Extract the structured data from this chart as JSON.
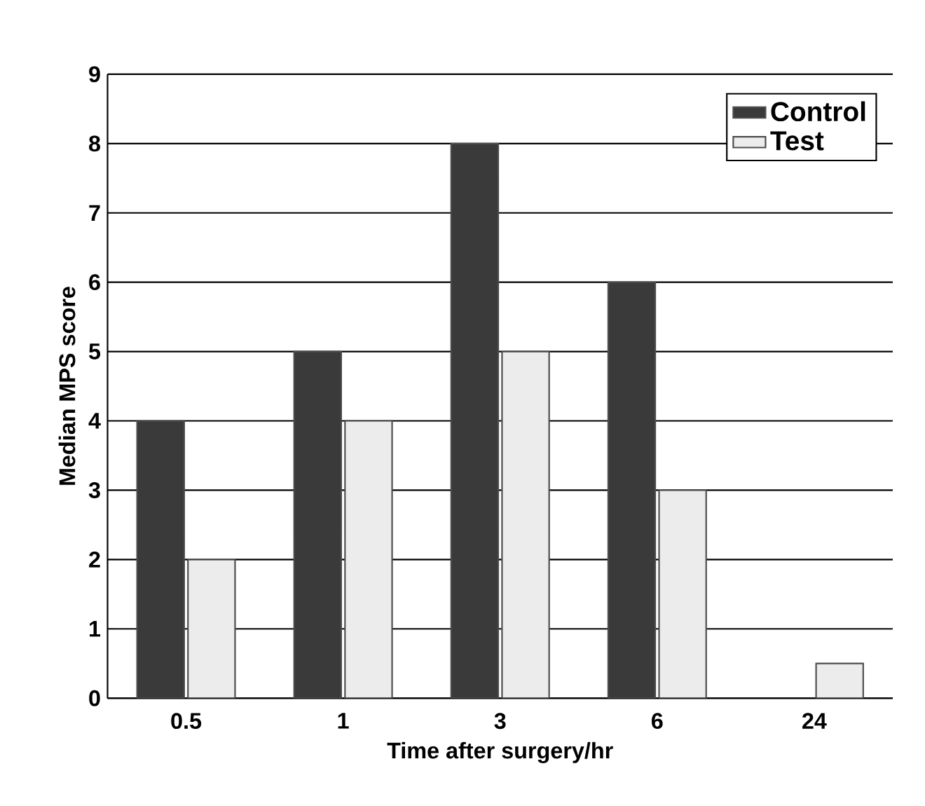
{
  "chart_data": {
    "type": "bar",
    "xlabel": "Time after surgery/hr",
    "ylabel": "Median MPS score",
    "categories": [
      "0.5",
      "1",
      "3",
      "6",
      "24"
    ],
    "series": [
      {
        "name": "Control",
        "color": "#3a3a3a",
        "values": [
          4,
          5,
          8,
          6,
          null
        ]
      },
      {
        "name": "Test",
        "color": "#ececec",
        "values": [
          2,
          4,
          5,
          3,
          0.5
        ]
      }
    ],
    "ylim": [
      0,
      9
    ],
    "yticks": [
      0,
      1,
      2,
      3,
      4,
      5,
      6,
      7,
      8,
      9
    ],
    "grid": "y",
    "legend": "top right"
  }
}
